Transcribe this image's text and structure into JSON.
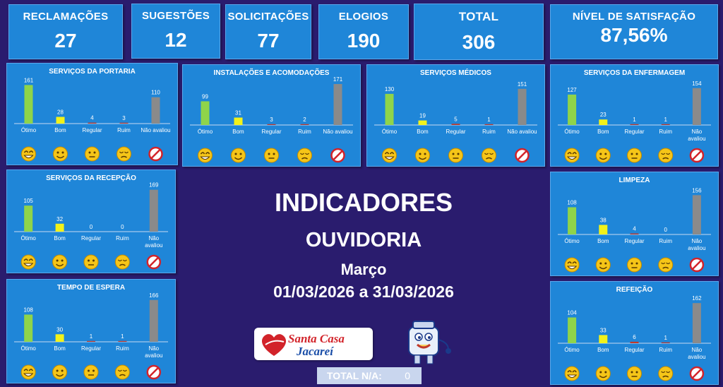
{
  "kpis": {
    "reclamacoes": {
      "label": "RECLAMAÇÕES",
      "value": "27"
    },
    "sugestoes": {
      "label": "SUGESTÕES",
      "value": "12"
    },
    "solicitacoes": {
      "label": "SOLICITAÇÕES",
      "value": "77"
    },
    "elogios": {
      "label": "ELOGIOS",
      "value": "190"
    },
    "total": {
      "label": "TOTAL",
      "value": "306"
    },
    "satisfacao": {
      "label": "NÍVEL DE SATISFAÇÃO",
      "value": "87,56%"
    }
  },
  "center": {
    "title": "INDICADORES",
    "subtitle": "OUVIDORIA",
    "month": "Março",
    "period": "01/03/2026 a 31/03/2026"
  },
  "logo": {
    "line1": "Santa Casa",
    "line2": "Jacareí"
  },
  "total_na": {
    "label": "TOTAL N/A:",
    "value": "0"
  },
  "colors": {
    "otimo": "#8fd44a",
    "bom": "#f2f21a",
    "regular": "#c0392b",
    "ruim": "#c0392b",
    "nao_avaliou": "#8a8a8a",
    "panel": "#1f86d8",
    "background": "#2a1c6e"
  },
  "icons": [
    "grinning-face-icon",
    "smiling-face-icon",
    "neutral-face-icon",
    "pensive-face-icon",
    "prohibited-icon"
  ],
  "chart_data": [
    {
      "type": "bar",
      "title": "SERVIÇOS DA PORTARIA",
      "categories": [
        "Ótimo",
        "Bom",
        "Regular",
        "Ruim",
        "Não avaliou"
      ],
      "values": [
        161,
        28,
        4,
        3,
        110
      ]
    },
    {
      "type": "bar",
      "title": "INSTALAÇÕES E ACOMODAÇÕES",
      "categories": [
        "Ótimo",
        "Bom",
        "Regular",
        "Ruim",
        "Não avaliou"
      ],
      "values": [
        99,
        31,
        3,
        2,
        171
      ]
    },
    {
      "type": "bar",
      "title": "SERVIÇOS MÉDICOS",
      "categories": [
        "Ótimo",
        "Bom",
        "Regular",
        "Ruim",
        "Não avaliou"
      ],
      "values": [
        130,
        19,
        5,
        1,
        151
      ]
    },
    {
      "type": "bar",
      "title": "SERVIÇOS DA ENFERMAGEM",
      "categories": [
        "Ótimo",
        "Bom",
        "Regular",
        "Ruim",
        "Não avaliou"
      ],
      "values": [
        127,
        23,
        1,
        1,
        154
      ]
    },
    {
      "type": "bar",
      "title": "SERVIÇOS DA RECEPÇÃO",
      "categories": [
        "Ótimo",
        "Bom",
        "Regular",
        "Ruim",
        "Não avaliou"
      ],
      "values": [
        105,
        32,
        0,
        0,
        169
      ]
    },
    {
      "type": "bar",
      "title": "LIMPEZA",
      "categories": [
        "Ótimo",
        "Bom",
        "Regular",
        "Ruim",
        "Não avaliou"
      ],
      "values": [
        108,
        38,
        4,
        0,
        156
      ]
    },
    {
      "type": "bar",
      "title": "TEMPO DE ESPERA",
      "categories": [
        "Ótimo",
        "Bom",
        "Regular",
        "Ruim",
        "Não avaliou"
      ],
      "values": [
        108,
        30,
        1,
        1,
        166
      ]
    },
    {
      "type": "bar",
      "title": "REFEIÇÃO",
      "categories": [
        "Ótimo",
        "Bom",
        "Regular",
        "Ruim",
        "Não avaliou"
      ],
      "values": [
        104,
        33,
        6,
        1,
        162
      ]
    }
  ]
}
